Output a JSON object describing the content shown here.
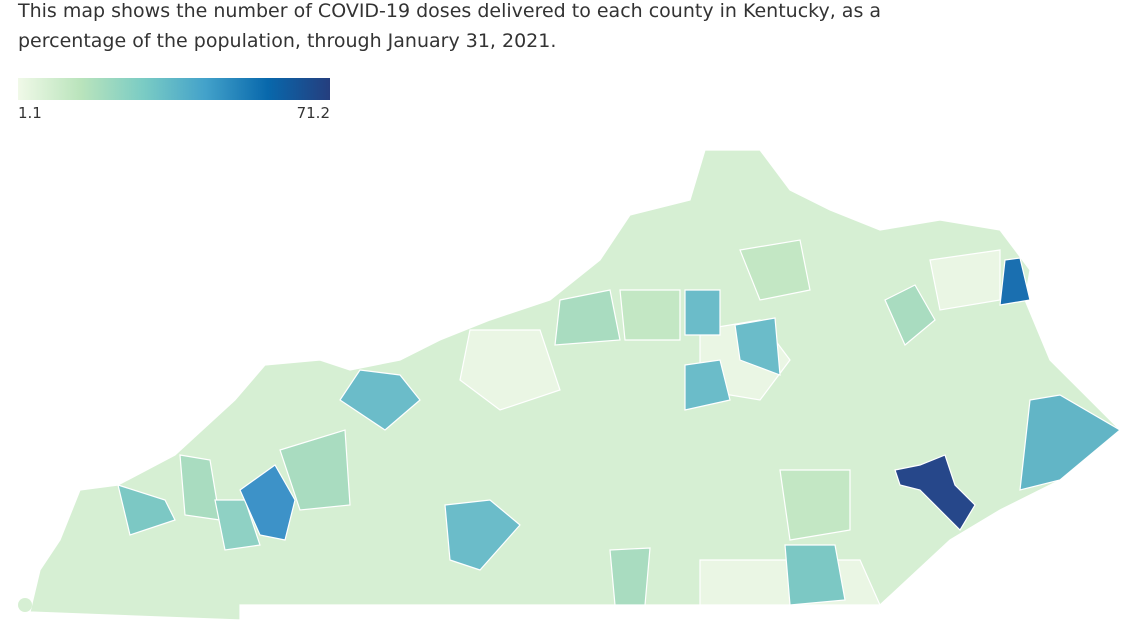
{
  "header": {
    "description_line1": "This map shows the number of COVID-19 doses delivered to each county in Kentucky, as a",
    "description_line2": "percentage of the population, through January 31, 2021."
  },
  "legend": {
    "min": 1.1,
    "max": 71.2,
    "colors": [
      "#f0f9e8",
      "#bae4bc",
      "#7bccc4",
      "#43a2ca",
      "#0868ac",
      "#253e7e"
    ]
  }
}
